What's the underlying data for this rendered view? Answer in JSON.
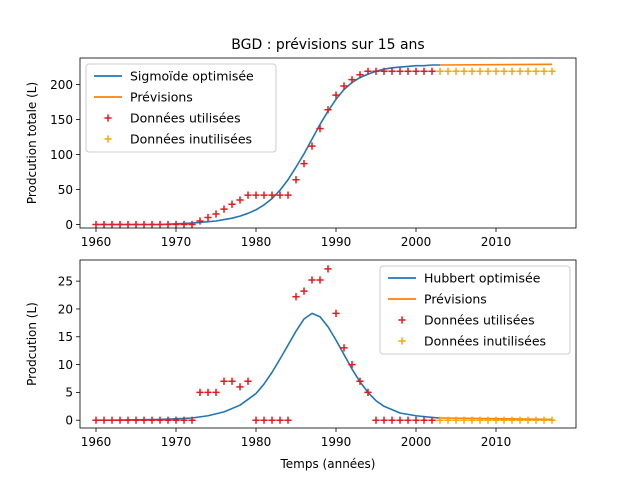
{
  "title": "BGD : prévisions sur 15 ans",
  "colors": {
    "fit": "#1f77b4",
    "forecast": "#ff7f0e",
    "used": "#e41a1c",
    "unused": "#ffa500"
  },
  "chart_data": [
    {
      "type": "line",
      "title": "BGD : prévisions sur 15 ans",
      "xlabel": "",
      "ylabel": "Prodcution totale (L)",
      "xlim": [
        1958,
        2020
      ],
      "ylim": [
        -5,
        238
      ],
      "xticks": [
        1960,
        1970,
        1980,
        1990,
        2000,
        2010
      ],
      "yticks": [
        0,
        50,
        100,
        150,
        200
      ],
      "legend": {
        "position": "top-left",
        "entries": [
          "Sigmoïde optimisée",
          "Prévisions",
          "Données utilisées",
          "Données inutilisées"
        ]
      },
      "series": [
        {
          "name": "Sigmoïde optimisée",
          "kind": "line",
          "color": "#1f77b4",
          "x": [
            1960,
            1962,
            1964,
            1966,
            1968,
            1970,
            1972,
            1973,
            1974,
            1975,
            1976,
            1977,
            1978,
            1979,
            1980,
            1981,
            1982,
            1983,
            1984,
            1985,
            1986,
            1987,
            1988,
            1989,
            1990,
            1991,
            1992,
            1993,
            1994,
            1995,
            1996,
            1997,
            1998,
            1999,
            2000,
            2001,
            2002,
            2003
          ],
          "y": [
            0,
            0,
            0,
            0,
            0,
            1,
            2,
            3,
            4,
            5,
            7,
            9,
            12,
            16,
            21,
            28,
            37,
            49,
            64,
            82,
            101,
            122,
            143,
            162,
            179,
            193,
            203,
            210,
            215,
            219,
            222,
            224,
            225,
            226,
            227,
            227,
            228,
            228
          ]
        },
        {
          "name": "Prévisions",
          "kind": "line",
          "color": "#ff7f0e",
          "x": [
            2003,
            2017
          ],
          "y": [
            228,
            229
          ]
        },
        {
          "name": "Données utilisées",
          "kind": "scatter",
          "marker": "+",
          "color": "#e41a1c",
          "x": [
            1960,
            1961,
            1962,
            1963,
            1964,
            1965,
            1966,
            1967,
            1968,
            1969,
            1970,
            1971,
            1972,
            1973,
            1974,
            1975,
            1976,
            1977,
            1978,
            1979,
            1980,
            1981,
            1982,
            1983,
            1984,
            1985,
            1986,
            1987,
            1988,
            1989,
            1990,
            1991,
            1992,
            1993,
            1994,
            1995,
            1996,
            1997,
            1998,
            1999,
            2000,
            2001,
            2002
          ],
          "y": [
            0,
            0,
            0,
            0,
            0,
            0,
            0,
            0,
            0,
            0,
            0,
            0,
            0,
            5,
            10,
            15,
            22,
            29,
            35,
            42,
            42,
            42,
            42,
            42,
            42,
            64,
            87,
            112,
            137,
            164,
            185,
            198,
            207,
            214,
            219,
            219,
            219,
            219,
            219,
            219,
            219,
            219,
            219
          ]
        },
        {
          "name": "Données inutilisées",
          "kind": "scatter",
          "marker": "+",
          "color": "#ffa500",
          "x": [
            2003,
            2004,
            2005,
            2006,
            2007,
            2008,
            2009,
            2010,
            2011,
            2012,
            2013,
            2014,
            2015,
            2016,
            2017
          ],
          "y": [
            219,
            219,
            219,
            219,
            219,
            219,
            219,
            219,
            219,
            219,
            219,
            219,
            219,
            219,
            219
          ]
        }
      ]
    },
    {
      "type": "line",
      "title": "",
      "xlabel": "Temps (années)",
      "ylabel": "Prodcution (L)",
      "xlim": [
        1958,
        2020
      ],
      "ylim": [
        -1.4,
        28.8
      ],
      "xticks": [
        1960,
        1970,
        1980,
        1990,
        2000,
        2010
      ],
      "yticks": [
        0,
        5,
        10,
        15,
        20,
        25
      ],
      "legend": {
        "position": "top-right",
        "entries": [
          "Hubbert optimisée",
          "Prévisions",
          "Données utilisées",
          "Données inutilisées"
        ]
      },
      "series": [
        {
          "name": "Hubbert optimisée",
          "kind": "line",
          "color": "#1f77b4",
          "x": [
            1960,
            1962,
            1964,
            1966,
            1968,
            1970,
            1972,
            1974,
            1976,
            1978,
            1980,
            1981,
            1982,
            1983,
            1984,
            1985,
            1986,
            1987,
            1988,
            1989,
            1990,
            1991,
            1992,
            1993,
            1994,
            1995,
            1996,
            1998,
            2000,
            2002,
            2003
          ],
          "y": [
            0,
            0,
            0.05,
            0.1,
            0.15,
            0.25,
            0.4,
            0.8,
            1.5,
            2.7,
            4.8,
            6.5,
            8.6,
            11,
            13.5,
            16,
            18.2,
            19.2,
            18.6,
            16.8,
            14.4,
            11.8,
            9.2,
            6.9,
            5,
            3.5,
            2.5,
            1.3,
            0.8,
            0.5,
            0.4
          ]
        },
        {
          "name": "Prévisions",
          "kind": "line",
          "color": "#ff7f0e",
          "x": [
            2003,
            2017
          ],
          "y": [
            0.4,
            0.15
          ]
        },
        {
          "name": "Données utilisées",
          "kind": "scatter",
          "marker": "+",
          "color": "#e41a1c",
          "x": [
            1960,
            1961,
            1962,
            1963,
            1964,
            1965,
            1966,
            1967,
            1968,
            1969,
            1970,
            1971,
            1972,
            1973,
            1974,
            1975,
            1976,
            1977,
            1978,
            1979,
            1980,
            1981,
            1982,
            1983,
            1984,
            1985,
            1986,
            1987,
            1988,
            1989,
            1990,
            1991,
            1992,
            1993,
            1994,
            1995,
            1996,
            1997,
            1998,
            1999,
            2000,
            2001,
            2002
          ],
          "y": [
            0,
            0,
            0,
            0,
            0,
            0,
            0,
            0,
            0,
            0,
            0,
            0,
            0,
            5,
            5,
            5,
            7,
            7,
            6,
            7,
            0,
            0,
            0,
            0,
            0,
            22.2,
            23.2,
            25.2,
            25.2,
            27.2,
            19.2,
            13,
            10,
            7,
            5,
            0,
            0,
            0,
            0,
            0,
            0,
            0,
            0
          ]
        },
        {
          "name": "Données inutilisées",
          "kind": "scatter",
          "marker": "+",
          "color": "#ffa500",
          "x": [
            2003,
            2004,
            2005,
            2006,
            2007,
            2008,
            2009,
            2010,
            2011,
            2012,
            2013,
            2014,
            2015,
            2016,
            2017
          ],
          "y": [
            0,
            0,
            0,
            0,
            0,
            0,
            0,
            0,
            0,
            0,
            0,
            0,
            0,
            0,
            0
          ]
        }
      ]
    }
  ]
}
